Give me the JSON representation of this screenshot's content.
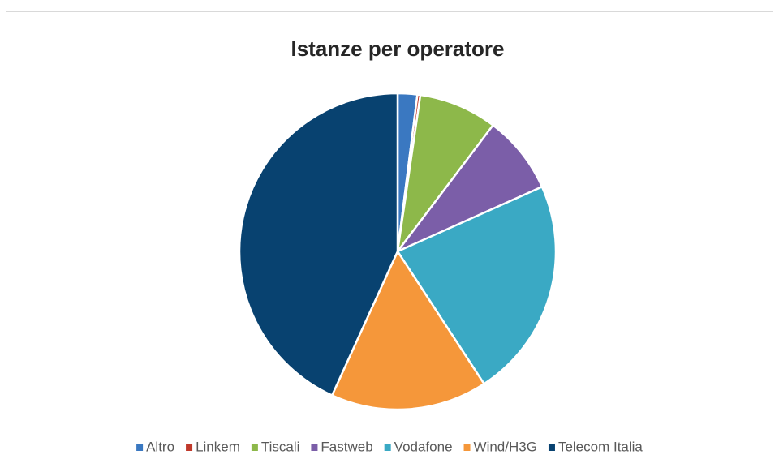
{
  "chart_data": {
    "type": "pie",
    "title": "Istanze per operatore",
    "categories": [
      "Altro",
      "Linkem",
      "Tiscali",
      "Fastweb",
      "Vodafone",
      "Wind/H3G",
      "Telecom Italia"
    ],
    "values": [
      2,
      0.3,
      8,
      8,
      22.5,
      16,
      43.2
    ],
    "colors": [
      "#3a78c1",
      "#c0392b",
      "#8db84a",
      "#7b5ea8",
      "#3aa9c4",
      "#f5973a",
      "#084270"
    ],
    "legend": "bottom"
  }
}
